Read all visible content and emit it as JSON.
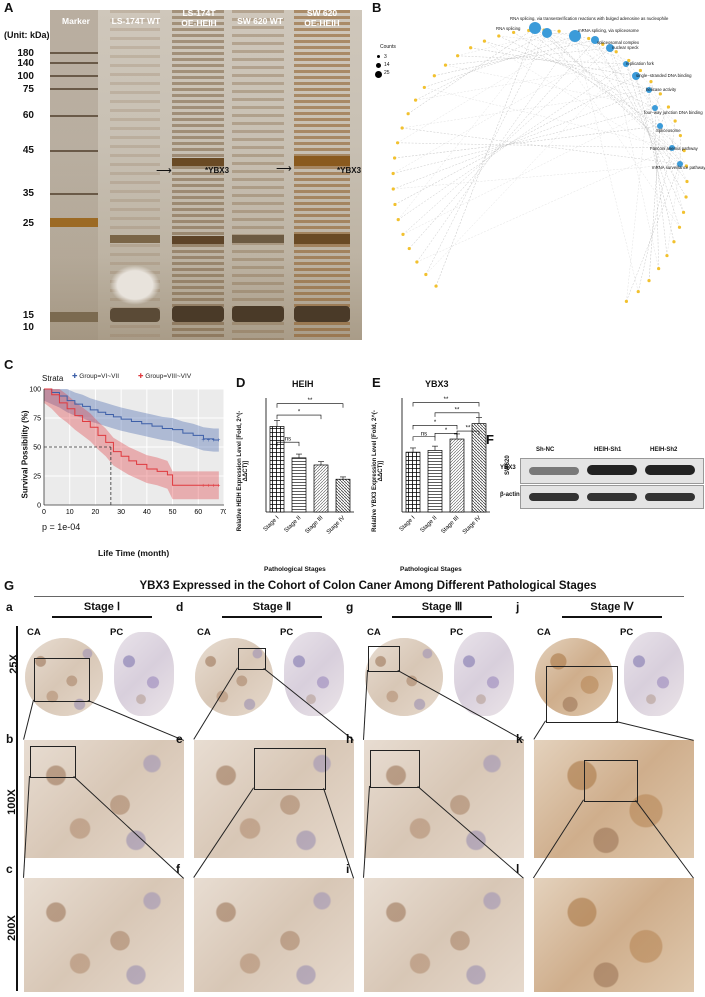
{
  "panels": {
    "A": "A",
    "B": "B",
    "C": "C",
    "D": "D",
    "E": "E",
    "F": "F",
    "G": "G"
  },
  "panelA": {
    "unit": "(Unit: kDa)",
    "lanes": [
      "Marker",
      "LS-174T WT",
      "LS-174T OE-HEIH",
      "SW 620 WT",
      "SW 620 OE-HEIH"
    ],
    "mw": [
      "180",
      "140",
      "100",
      "75",
      "60",
      "45",
      "35",
      "25",
      "15",
      "10"
    ],
    "annotation": "*YBX3"
  },
  "panelB": {
    "legend_title": "Counts",
    "legend_values": [
      "3",
      "14",
      "25"
    ],
    "terms": [
      "RNA splicing, via transesterification reactions with bulged adenosine as nucleophile",
      "RNA splicing",
      "mRNA splicing, via spliceosome",
      "spliceosomal complex",
      "nuclear speck",
      "replication fork",
      "single−stranded DNA binding",
      "helicase activity",
      "four−way junction DNA binding",
      "Spliceosome",
      "Fanconi anemia pathway",
      "mRNA surveillance pathway"
    ]
  },
  "panelC": {
    "strata_label": "Strata",
    "legend": [
      "Group=VI~VII",
      "Group=VIII~VIV"
    ],
    "ylabel": "Survival Possibility (%)",
    "xlabel": "Life Time (month)",
    "pvalue": "p = 1e-04",
    "yticks": [
      "0",
      "25",
      "50",
      "75",
      "100"
    ],
    "xticks": [
      "0",
      "10",
      "20",
      "30",
      "40",
      "50",
      "60",
      "70"
    ],
    "colors": {
      "group1": "#3d5fa8",
      "group2": "#e0393e"
    }
  },
  "chart_data": [
    {
      "type": "bar",
      "title": "HEIH",
      "ylabel": "Relative HEIH Expression Level [Fold, 2^(-ΔΔCT)]",
      "xlabel": "Pathological Stages",
      "categories": [
        "Stage I",
        "Stage II",
        "Stage III",
        "Stage IV"
      ],
      "values": [
        0.6,
        0.38,
        0.33,
        0.23
      ],
      "ylim": [
        0,
        0.8
      ],
      "significance": [
        "ns",
        "*",
        "**"
      ]
    },
    {
      "type": "bar",
      "title": "YBX3",
      "ylabel": "Relative YBX3 Expression Level [Fold, 2^(-ΔΔCT)]",
      "xlabel": "Pathological Stages",
      "categories": [
        "Stage I",
        "Stage II",
        "Stage III",
        "Stage IV"
      ],
      "values": [
        1.05,
        1.08,
        1.28,
        1.55
      ],
      "ylim": [
        0,
        2.0
      ],
      "significance": [
        "ns",
        "*",
        "**",
        "*",
        "**",
        "**"
      ]
    }
  ],
  "panelF": {
    "columns": [
      "Sh-NC",
      "HEIH-Sh1",
      "HEIH-Sh2"
    ],
    "rows": [
      "YBX3",
      "β-actin"
    ],
    "cell_line": "SW620"
  },
  "panelG": {
    "title": "YBX3 Expressed in the Cohort of Colon Caner Among Different Pathological Stages",
    "stages": [
      "Stage Ⅰ",
      "Stage Ⅱ",
      "Stage Ⅲ",
      "Stage Ⅳ"
    ],
    "ca": "CA",
    "pc": "PC",
    "mags": [
      "25X",
      "100X",
      "200X"
    ],
    "sublabels": [
      "a",
      "b",
      "c",
      "d",
      "e",
      "f",
      "g",
      "h",
      "i",
      "j",
      "k",
      "l"
    ]
  }
}
